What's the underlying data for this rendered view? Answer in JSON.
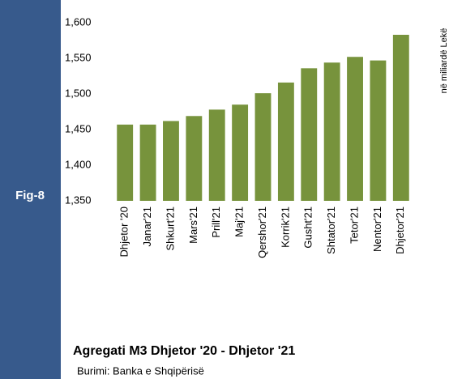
{
  "chart_data": {
    "type": "bar",
    "figure_label": "Fig-8",
    "title": "Agregati M3 Dhjetor '20  - Dhjetor '21",
    "source": "Burimi: Banka e Shqipërisë",
    "y_axis_label": "në miliardë Lekë",
    "categories": [
      "Dhjetor '20",
      "Janar'21",
      "Shkurt'21",
      "Mars'21",
      "Prill'21",
      "Maj'21",
      "Qershor'21",
      "Korrik'21",
      "Gusht'21",
      "Shtator'21",
      "Tetor'21",
      "Nentor'21",
      "Dhjetor'21"
    ],
    "values": [
      1457,
      1457,
      1462,
      1469,
      1478,
      1485,
      1501,
      1516,
      1536,
      1544,
      1552,
      1547,
      1583
    ],
    "color": "#77933c",
    "ylim": [
      1350,
      1600
    ],
    "yticks": [
      {
        "value": 1350,
        "label": "1,350"
      },
      {
        "value": 1400,
        "label": "1,400"
      },
      {
        "value": 1450,
        "label": "1,450"
      },
      {
        "value": 1500,
        "label": "1,500"
      },
      {
        "value": 1550,
        "label": "1,550"
      },
      {
        "value": 1600,
        "label": "1,600"
      }
    ],
    "grid": false
  }
}
